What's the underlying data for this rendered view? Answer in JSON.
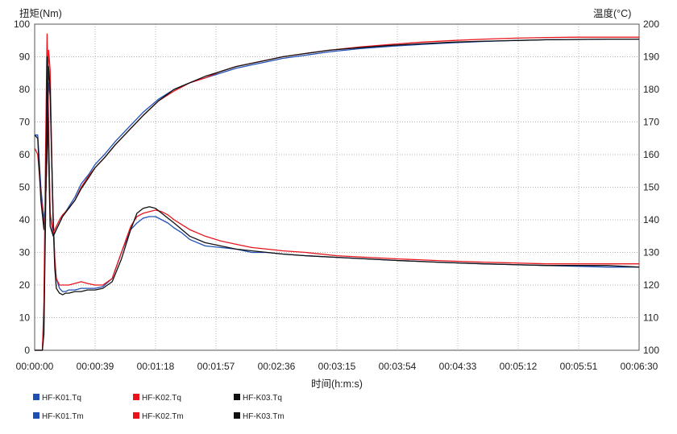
{
  "chart_data": {
    "type": "line",
    "ylabel_left": "扭矩(Nm)",
    "ylabel_right": "温度(°C)",
    "xlabel": "时间(h:m:s)",
    "x_tick_labels": [
      "00:00:00",
      "00:00:39",
      "00:01:18",
      "00:01:57",
      "00:02:36",
      "00:03:15",
      "00:03:54",
      "00:04:33",
      "00:05:12",
      "00:05:51",
      "00:06:30"
    ],
    "x_tick_seconds": [
      0,
      39,
      78,
      117,
      156,
      195,
      234,
      273,
      312,
      351,
      390
    ],
    "xlim": [
      0,
      390
    ],
    "y_left_ticks": [
      "0",
      "10",
      "20",
      "30",
      "40",
      "50",
      "60",
      "70",
      "80",
      "90",
      "100"
    ],
    "y_left_lim": [
      0,
      100
    ],
    "y_right_ticks": [
      "100",
      "110",
      "120",
      "130",
      "140",
      "150",
      "160",
      "170",
      "180",
      "190",
      "200"
    ],
    "y_right_lim": [
      100,
      200
    ],
    "grid": true,
    "legend_position": "bottom-left",
    "series": [
      {
        "name": "HF-K01.Tq",
        "axis": "left",
        "color": "#1f4fb4",
        "x": [
          0,
          2,
          4,
          6,
          7,
          8,
          9,
          10,
          11,
          12,
          13,
          14,
          16,
          18,
          20,
          22,
          26,
          30,
          34,
          39,
          44,
          50,
          56,
          62,
          66,
          70,
          74,
          78,
          82,
          86,
          90,
          95,
          100,
          110,
          120,
          130,
          140,
          150,
          160,
          175,
          195,
          215,
          235,
          260,
          290,
          330,
          370,
          390
        ],
        "y": [
          66,
          66,
          50,
          40,
          45,
          60,
          82,
          78,
          58,
          40,
          28,
          22,
          19,
          18,
          18,
          18.5,
          18.5,
          19,
          19,
          19,
          19.5,
          22,
          30,
          37,
          39,
          40.5,
          41,
          41,
          40,
          39,
          37.5,
          36,
          34,
          32,
          31.5,
          31,
          30,
          30,
          29.5,
          29,
          28.5,
          28,
          27.5,
          27,
          26.5,
          26,
          25.5,
          25.5
        ]
      },
      {
        "name": "HF-K02.Tq",
        "axis": "left",
        "color": "#e8141c",
        "x": [
          0,
          2,
          4,
          6,
          7,
          8,
          9,
          10,
          11,
          12,
          13,
          14,
          16,
          18,
          20,
          22,
          26,
          30,
          34,
          39,
          44,
          50,
          56,
          62,
          66,
          70,
          74,
          78,
          82,
          86,
          90,
          95,
          100,
          110,
          120,
          130,
          140,
          150,
          160,
          175,
          195,
          215,
          235,
          260,
          290,
          330,
          370,
          390
        ],
        "y": [
          62,
          60,
          48,
          38,
          45,
          62,
          92,
          86,
          60,
          40,
          28,
          22,
          20,
          20,
          20,
          20,
          20.5,
          21,
          20.5,
          20,
          20,
          22,
          30,
          38,
          41,
          42,
          42.5,
          43,
          42.5,
          41.5,
          40,
          38.5,
          37,
          35,
          33.5,
          32.5,
          31.5,
          31,
          30.5,
          30,
          29,
          28.5,
          28,
          27.5,
          27,
          26.5,
          26.5,
          26.5
        ]
      },
      {
        "name": "HF-K03.Tq",
        "axis": "left",
        "color": "#111111",
        "x": [
          0,
          2,
          4,
          6,
          7,
          8,
          9,
          10,
          11,
          12,
          13,
          14,
          16,
          18,
          20,
          22,
          26,
          30,
          34,
          39,
          44,
          50,
          56,
          62,
          66,
          70,
          74,
          78,
          82,
          86,
          90,
          95,
          100,
          110,
          120,
          130,
          140,
          150,
          160,
          175,
          195,
          215,
          235,
          260,
          290,
          330,
          370,
          390
        ],
        "y": [
          66,
          65,
          46,
          37,
          45,
          62,
          87,
          80,
          58,
          38,
          25,
          19,
          17.5,
          17,
          17.5,
          17.5,
          18,
          18,
          18.5,
          18.5,
          19,
          21,
          28,
          37,
          42,
          43.5,
          44,
          43.5,
          42,
          40.5,
          39,
          37,
          35,
          33,
          32,
          31,
          30.5,
          30,
          29.5,
          29,
          28.5,
          28,
          27.5,
          27,
          26.5,
          26,
          26,
          25.5
        ]
      },
      {
        "name": "HF-K01.Tm",
        "axis": "right",
        "color": "#1f4fb4",
        "x": [
          0,
          3,
          5,
          6,
          7,
          8,
          9,
          10,
          12,
          14,
          16,
          18,
          22,
          26,
          30,
          35,
          39,
          45,
          52,
          60,
          70,
          80,
          90,
          100,
          110,
          120,
          130,
          140,
          150,
          160,
          175,
          190,
          210,
          230,
          250,
          270,
          290,
          310,
          330,
          350,
          370,
          390
        ],
        "y": [
          100,
          100,
          100,
          110,
          150,
          182,
          165,
          142,
          135,
          137,
          139,
          141,
          144,
          147,
          151,
          154,
          157,
          160,
          164,
          168,
          173,
          177,
          180,
          182,
          183.5,
          185,
          186.5,
          187.5,
          188.5,
          189.5,
          190.5,
          191.5,
          192.5,
          193.2,
          193.8,
          194.3,
          194.7,
          195,
          195.2,
          195.3,
          195.4,
          195.4
        ]
      },
      {
        "name": "HF-K02.Tm",
        "axis": "right",
        "color": "#e8141c",
        "x": [
          0,
          3,
          5,
          6,
          7,
          8,
          9,
          10,
          12,
          14,
          16,
          18,
          22,
          26,
          30,
          35,
          39,
          45,
          52,
          60,
          70,
          80,
          90,
          100,
          110,
          120,
          130,
          140,
          150,
          160,
          175,
          190,
          210,
          230,
          250,
          270,
          290,
          310,
          330,
          350,
          370,
          390
        ],
        "y": [
          100,
          100,
          100,
          115,
          160,
          197,
          170,
          142,
          136,
          138,
          140,
          141.5,
          143.5,
          146,
          150,
          153.5,
          156,
          159,
          163,
          167,
          172,
          176.5,
          179.5,
          182,
          183.5,
          185.5,
          187,
          188,
          189,
          190,
          191,
          192,
          193,
          193.8,
          194.5,
          195,
          195.4,
          195.7,
          195.9,
          196,
          196,
          196
        ]
      },
      {
        "name": "HF-K03.Tm",
        "axis": "right",
        "color": "#111111",
        "x": [
          0,
          3,
          5,
          6,
          7,
          8,
          9,
          10,
          12,
          14,
          16,
          18,
          22,
          26,
          30,
          35,
          39,
          45,
          52,
          60,
          70,
          80,
          90,
          100,
          110,
          120,
          130,
          140,
          150,
          160,
          175,
          190,
          210,
          230,
          250,
          270,
          290,
          310,
          330,
          350,
          370,
          390
        ],
        "y": [
          100,
          100,
          100,
          105,
          140,
          190,
          160,
          138,
          135,
          137,
          139,
          141,
          143.5,
          146,
          149.5,
          153,
          156,
          159,
          163,
          167,
          172,
          176.5,
          180,
          182,
          184,
          185.5,
          187,
          188,
          189,
          190,
          191,
          192,
          192.8,
          193.5,
          194,
          194.5,
          194.8,
          195,
          195.2,
          195.3,
          195.4,
          195.4
        ]
      }
    ]
  }
}
